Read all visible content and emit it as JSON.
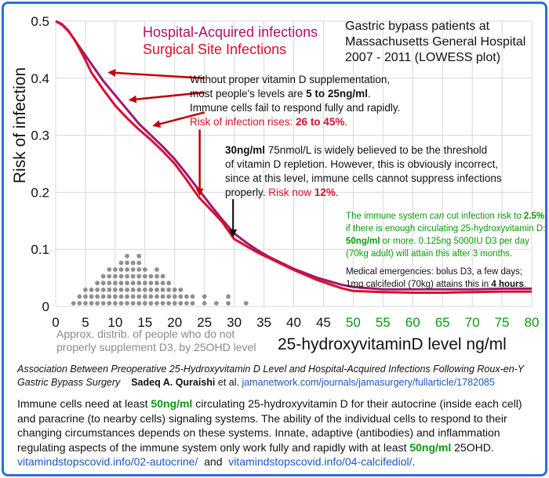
{
  "chart_data": {
    "type": "line",
    "xlabel": "25-hydroxyvitaminD level ng/ml",
    "ylabel": "Risk of infection",
    "xlim": [
      0,
      80
    ],
    "ylim": [
      0,
      0.5
    ],
    "x_ticks": [
      0,
      5,
      10,
      15,
      20,
      25,
      30,
      35,
      40,
      45,
      50,
      55,
      60,
      65,
      70,
      75,
      80
    ],
    "y_ticks": [
      0,
      0.1,
      0.2,
      0.3,
      0.4,
      0.5
    ],
    "green_tick_from": 50,
    "series": [
      {
        "name": "Hospital-Acquired infections",
        "color": "#a01870",
        "points": [
          [
            0,
            0.5
          ],
          [
            1,
            0.495
          ],
          [
            2,
            0.485
          ],
          [
            3,
            0.47
          ],
          [
            4,
            0.455
          ],
          [
            5,
            0.44
          ],
          [
            6,
            0.425
          ],
          [
            8,
            0.395
          ],
          [
            10,
            0.37
          ],
          [
            12,
            0.345
          ],
          [
            14,
            0.32
          ],
          [
            16,
            0.3
          ],
          [
            18,
            0.28
          ],
          [
            20,
            0.258
          ],
          [
            22,
            0.232
          ],
          [
            24,
            0.205
          ],
          [
            26,
            0.178
          ],
          [
            28,
            0.152
          ],
          [
            30,
            0.128
          ],
          [
            32,
            0.112
          ],
          [
            34,
            0.098
          ],
          [
            36,
            0.086
          ],
          [
            38,
            0.076
          ],
          [
            40,
            0.066
          ],
          [
            42,
            0.058
          ],
          [
            44,
            0.05
          ],
          [
            46,
            0.044
          ],
          [
            48,
            0.038
          ],
          [
            50,
            0.034
          ],
          [
            55,
            0.03
          ],
          [
            60,
            0.03
          ],
          [
            65,
            0.03
          ],
          [
            70,
            0.03
          ],
          [
            75,
            0.031
          ],
          [
            80,
            0.031
          ]
        ]
      },
      {
        "name": "Surgical Site Infections",
        "color": "#d8102c",
        "points": [
          [
            0,
            0.5
          ],
          [
            1,
            0.494
          ],
          [
            2,
            0.484
          ],
          [
            3,
            0.47
          ],
          [
            4,
            0.452
          ],
          [
            5,
            0.432
          ],
          [
            6,
            0.41
          ],
          [
            8,
            0.38
          ],
          [
            10,
            0.352
          ],
          [
            12,
            0.33
          ],
          [
            14,
            0.31
          ],
          [
            16,
            0.292
          ],
          [
            18,
            0.272
          ],
          [
            20,
            0.25
          ],
          [
            22,
            0.222
          ],
          [
            24,
            0.192
          ],
          [
            26,
            0.17
          ],
          [
            28,
            0.148
          ],
          [
            30,
            0.118
          ],
          [
            32,
            0.106
          ],
          [
            34,
            0.094
          ],
          [
            36,
            0.084
          ],
          [
            38,
            0.074
          ],
          [
            40,
            0.064
          ],
          [
            42,
            0.055
          ],
          [
            44,
            0.046
          ],
          [
            46,
            0.039
          ],
          [
            48,
            0.032
          ],
          [
            50,
            0.027
          ],
          [
            55,
            0.025
          ],
          [
            60,
            0.024
          ],
          [
            65,
            0.024
          ],
          [
            70,
            0.025
          ],
          [
            75,
            0.026
          ],
          [
            80,
            0.026
          ]
        ]
      }
    ],
    "distribution_dots": {
      "color": "#909090",
      "columns": [
        {
          "x": 3,
          "count": 1
        },
        {
          "x": 4,
          "count": 2
        },
        {
          "x": 5,
          "count": 3
        },
        {
          "x": 6,
          "count": 3
        },
        {
          "x": 7,
          "count": 4
        },
        {
          "x": 8,
          "count": 5
        },
        {
          "x": 9,
          "count": 6
        },
        {
          "x": 10,
          "count": 6
        },
        {
          "x": 11,
          "count": 7
        },
        {
          "x": 12,
          "count": 8
        },
        {
          "x": 13,
          "count": 7
        },
        {
          "x": 14,
          "count": 8
        },
        {
          "x": 15,
          "count": 6
        },
        {
          "x": 16,
          "count": 5
        },
        {
          "x": 17,
          "count": 6
        },
        {
          "x": 18,
          "count": 5
        },
        {
          "x": 19,
          "count": 4
        },
        {
          "x": 20,
          "count": 3
        },
        {
          "x": 21,
          "count": 3
        },
        {
          "x": 22,
          "count": 2
        },
        {
          "x": 23,
          "count": 2
        },
        {
          "x": 25,
          "count": 2
        },
        {
          "x": 27,
          "count": 1
        },
        {
          "x": 29,
          "count": 2
        },
        {
          "x": 32,
          "count": 1
        }
      ]
    },
    "arrows": [
      {
        "color": "#c00000",
        "from": [
          25,
          0.4
        ],
        "to": [
          9,
          0.41
        ]
      },
      {
        "color": "#c00000",
        "from": [
          25,
          0.375
        ],
        "to": [
          12.5,
          0.362
        ]
      },
      {
        "color": "#c00000",
        "from": [
          25,
          0.34
        ],
        "to": [
          16.5,
          0.317
        ]
      },
      {
        "color": "#c00000",
        "from": [
          24.2,
          0.31
        ],
        "to": [
          24.2,
          0.196
        ]
      },
      {
        "color": "#111111",
        "from": [
          29.8,
          0.188
        ],
        "to": [
          29.8,
          0.124
        ]
      }
    ]
  },
  "legend": {
    "hai": "Hospital-Acquired infections",
    "ssi": "Surgical Site Infections"
  },
  "study": {
    "line1": "Gastric bypass patients at",
    "line2": "Massachusetts General Hospital",
    "line3": "2007 - 2011 (LOWESS plot)"
  },
  "note1": {
    "line1": "Without proper vitamin D supplementation,",
    "line2_pre": "most people's levels are ",
    "line2_bold": "5 to 25ng/ml",
    "line2_post": ".",
    "line3": "Immune cells fail to respond fully and rapidly.",
    "line4_pre": "Risk of infection rises: ",
    "line4_bold": "26 to 45%",
    "line4_post": "."
  },
  "note2": {
    "line1_bold": "30ng/ml",
    "line1_rest": " 75nmol/L is widely believed to be the threshold",
    "line2": "of vitamin D repletion.  However, this is obviously incorrect,",
    "line3": "since at this level, immune cells cannot suppress infections",
    "line4_pre": "properly.  ",
    "line4_red": "Risk now ",
    "line4_redbold": "12%",
    "line4_post": "."
  },
  "note3": {
    "line1_pre": "The immune system ",
    "line1_italic": "can",
    "line1_mid": " cut infection risk to ",
    "line1_bold": "2.5%",
    "line1_post": ",",
    "line2": "if there is enough circulating 25-hydroxyvitamin D:",
    "line3_bold": "50ng/ml",
    "line3_rest": " or more.   0.125ng 5000IU D3 per day",
    "line4": "(70kg adult) will attain this after 3 months."
  },
  "note4": {
    "line1": "Medical emergencies: bolus D3, a few days;",
    "line2_pre": "1mg calcifediol (70kg) attains this in ",
    "line2_bold": "4 hours",
    "line2_post": "."
  },
  "dist_label": {
    "line1": "Approx. distrib. of people who do not",
    "line2": "properly supplement D3, by 25OHD level"
  },
  "caption": {
    "title1": "Association Between Preoperative 25-Hydroxyvitamin D Level and Hospital-Acquired Infections Following Roux-en-Y",
    "title2": "Gastric Bypass Surgery",
    "author": "Sadeq A. Quraishi",
    "etal": " et al. ",
    "link": "jamanetwork.com/journals/jamasurgery/fullarticle/1782085"
  },
  "paragraph": {
    "p1": "Immune cells need at least ",
    "p1_green": "50ng/ml",
    "p2": " circulating 25-hydroxyvitamin D for their autocrine (inside each cell) and paracrine (to nearby cells) signaling systems.  The ability of the individual cells to respond to their changing circumstances depends on these systems.  Innate, adaptive (antibodies) and inflammation regulating aspects of the immune system only work fully and rapidly with at least  ",
    "p3_green": "50ng/ml",
    "p4": " 25OHD.",
    "link1": "vitamindstopscovid.info/02-autocrine/",
    "and": "  and  ",
    "link2": "vitamindstopscovid.info/04-calcifediol/",
    "end": "."
  },
  "colors": {
    "frame": "#2d6ee0",
    "red_text": "#d8102c",
    "magenta_text": "#b0106e",
    "green_text": "#0a9a0a",
    "link": "#1a55c9",
    "grid": "#d8d8d8"
  }
}
